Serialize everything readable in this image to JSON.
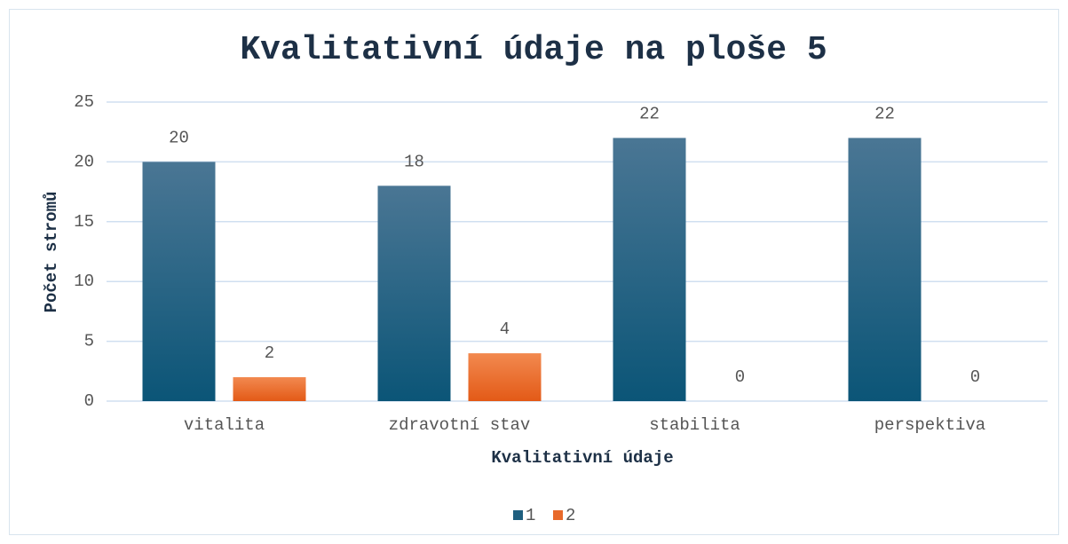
{
  "chart_data": {
    "type": "bar",
    "title": "Kvalitativní údaje na ploše 5",
    "x_label": "Kvalitativní údaje",
    "y_label": "Počet stromů",
    "categories": [
      "vitalita",
      "zdravotní stav",
      "stabilita",
      "perspektiva"
    ],
    "series": [
      {
        "name": "1",
        "color": "#1f5f7f",
        "values": [
          20,
          18,
          22,
          22
        ]
      },
      {
        "name": "2",
        "color": "#e8692a",
        "values": [
          2,
          4,
          0,
          0
        ]
      }
    ],
    "ylim": [
      0,
      25
    ],
    "yticks": [
      0,
      5,
      10,
      15,
      20,
      25
    ],
    "grid": true,
    "legend": "bottom"
  }
}
